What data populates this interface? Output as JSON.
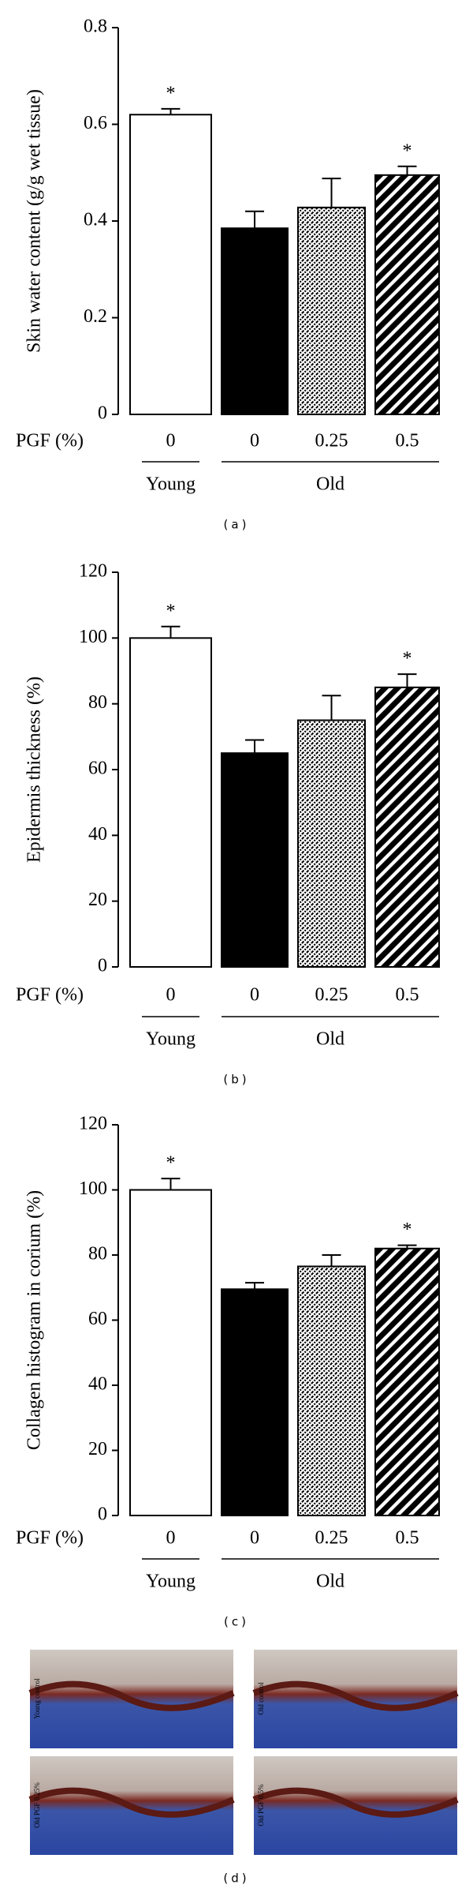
{
  "chart_data": [
    {
      "type": "bar",
      "panel_label": "(a)",
      "y_label": "Skin water content (g/g wet tissue)",
      "x_label": "PGF (%)",
      "categories": [
        "0",
        "0",
        "0.25",
        "0.5"
      ],
      "group_of": [
        "Young",
        "Old",
        "Old",
        "Old"
      ],
      "values": [
        0.62,
        0.385,
        0.428,
        0.495
      ],
      "errors": [
        0.012,
        0.035,
        0.06,
        0.018
      ],
      "significance": [
        "*",
        null,
        null,
        "*"
      ],
      "fills": [
        "white",
        "black",
        "checker",
        "diagonal"
      ],
      "ylim": [
        0,
        0.8
      ],
      "yticks": [
        0,
        0.2,
        0.4,
        0.6,
        0.8
      ]
    },
    {
      "type": "bar",
      "panel_label": "(b)",
      "y_label": "Epidermis thickness (%)",
      "x_label": "PGF (%)",
      "categories": [
        "0",
        "0",
        "0.25",
        "0.5"
      ],
      "group_of": [
        "Young",
        "Old",
        "Old",
        "Old"
      ],
      "values": [
        100,
        65,
        75,
        85
      ],
      "errors": [
        3.5,
        4,
        7.5,
        4
      ],
      "significance": [
        "*",
        null,
        null,
        "*"
      ],
      "fills": [
        "white",
        "black",
        "checker",
        "diagonal"
      ],
      "ylim": [
        0,
        120
      ],
      "yticks": [
        0,
        20,
        40,
        60,
        80,
        100,
        120
      ]
    },
    {
      "type": "bar",
      "panel_label": "(c)",
      "y_label": "Collagen histogram in corium (%)",
      "x_label": "PGF (%)",
      "categories": [
        "0",
        "0",
        "0.25",
        "0.5"
      ],
      "group_of": [
        "Young",
        "Old",
        "Old",
        "Old"
      ],
      "values": [
        100,
        69.5,
        76.5,
        82
      ],
      "errors": [
        3.5,
        2,
        3.5,
        1
      ],
      "significance": [
        "*",
        null,
        null,
        "*"
      ],
      "fills": [
        "white",
        "black",
        "checker",
        "diagonal"
      ],
      "ylim": [
        0,
        120
      ],
      "yticks": [
        0,
        20,
        40,
        60,
        80,
        100,
        120
      ]
    }
  ],
  "panel_d": {
    "label": "(d)",
    "images": [
      "Young control",
      "Old control",
      "Old PGF 0.25%",
      "Old PGF 0.5%"
    ]
  }
}
